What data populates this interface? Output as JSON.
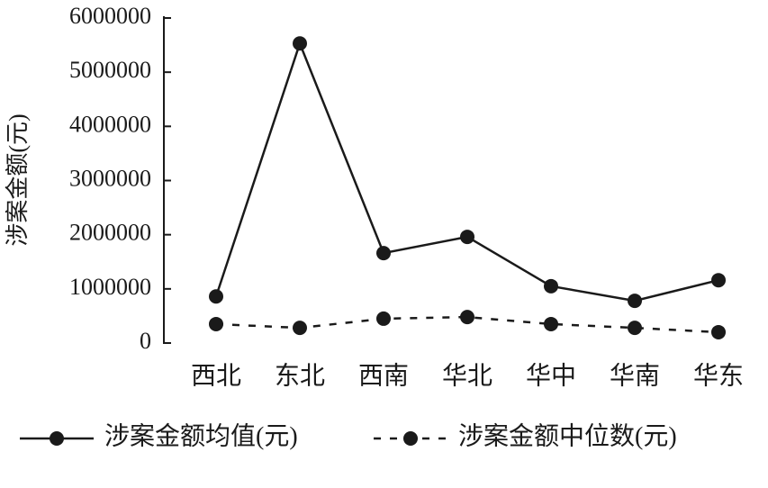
{
  "chart_data": {
    "type": "line",
    "y_label": "涉案金额(元)",
    "categories": [
      "西北",
      "东北",
      "西南",
      "华北",
      "华中",
      "华南",
      "华东"
    ],
    "series": [
      {
        "name": "涉案金额均值(元)",
        "color": "#1a1a1a",
        "line_style": "solid",
        "values": [
          860000,
          5530000,
          1660000,
          1960000,
          1050000,
          780000,
          1160000
        ]
      },
      {
        "name": "涉案金额中位数(元)",
        "color": "#1a1a1a",
        "line_style": "dashed",
        "values": [
          350000,
          280000,
          450000,
          480000,
          350000,
          280000,
          200000
        ]
      }
    ],
    "ylim": [
      0,
      6000000
    ],
    "yticks": [
      0,
      1000000,
      2000000,
      3000000,
      4000000,
      5000000,
      6000000
    ],
    "grid": false
  }
}
